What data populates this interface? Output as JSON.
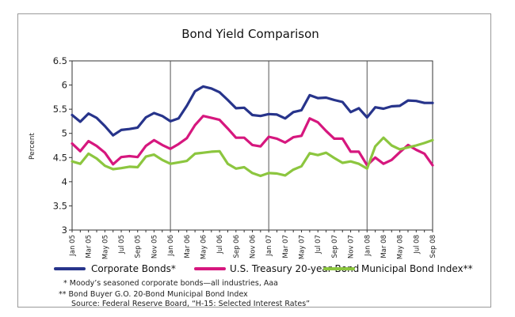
{
  "chart_data": {
    "type": "line",
    "title": "Bond Yield Comparison",
    "ylabel": "Percent",
    "xlabel": "",
    "ylim": [
      3,
      6.5
    ],
    "yticks": [
      "3",
      "3.5",
      "4",
      "4.5",
      "5",
      "5.5",
      "6",
      "6.5"
    ],
    "x_tick_labels": [
      "Jan 05",
      "Mar 05",
      "May 05",
      "Jul 05",
      "Sep 05",
      "Nov 05",
      "Jan 06",
      "Mar 06",
      "May 06",
      "Jul 06",
      "Sep 06",
      "Nov 06",
      "Jan 07",
      "Mar 07",
      "May 07",
      "Jul 07",
      "Sep 07",
      "Nov 07",
      "Jan 08",
      "Mar 08",
      "May 08",
      "Jul 08",
      "Sep 08"
    ],
    "x": [
      "Jan 05",
      "Feb 05",
      "Mar 05",
      "Apr 05",
      "May 05",
      "Jun 05",
      "Jul 05",
      "Aug 05",
      "Sep 05",
      "Oct 05",
      "Nov 05",
      "Dec 05",
      "Jan 06",
      "Feb 06",
      "Mar 06",
      "Apr 06",
      "May 06",
      "Jun 06",
      "Jul 06",
      "Aug 06",
      "Sep 06",
      "Oct 06",
      "Nov 06",
      "Dec 06",
      "Jan 07",
      "Feb 07",
      "Mar 07",
      "Apr 07",
      "May 07",
      "Jun 07",
      "Jul 07",
      "Aug 07",
      "Sep 07",
      "Oct 07",
      "Nov 07",
      "Dec 07",
      "Jan 08",
      "Feb 08",
      "Mar 08",
      "Apr 08",
      "May 08",
      "Jun 08",
      "Jul 08",
      "Aug 08",
      "Sep 08"
    ],
    "year_dividers": [
      "Jan 06",
      "Jan 07",
      "Jan 08"
    ],
    "grid": false,
    "legend_position": "bottom",
    "series": [
      {
        "name": "Corporate Bonds*",
        "color": "#27348b",
        "values": [
          5.38,
          5.24,
          5.41,
          5.32,
          5.15,
          4.96,
          5.07,
          5.09,
          5.12,
          5.33,
          5.42,
          5.36,
          5.25,
          5.31,
          5.57,
          5.87,
          5.97,
          5.93,
          5.85,
          5.69,
          5.52,
          5.53,
          5.38,
          5.36,
          5.4,
          5.39,
          5.31,
          5.44,
          5.48,
          5.79,
          5.73,
          5.74,
          5.69,
          5.65,
          5.44,
          5.52,
          5.33,
          5.54,
          5.51,
          5.56,
          5.57,
          5.68,
          5.67,
          5.63,
          5.63
        ]
      },
      {
        "name": "U.S. Treasury 20-year Bond",
        "color": "#d6177e",
        "values": [
          4.79,
          4.63,
          4.84,
          4.74,
          4.6,
          4.36,
          4.51,
          4.53,
          4.51,
          4.74,
          4.86,
          4.76,
          4.68,
          4.78,
          4.9,
          5.17,
          5.36,
          5.32,
          5.28,
          5.1,
          4.91,
          4.91,
          4.76,
          4.73,
          4.93,
          4.89,
          4.81,
          4.92,
          4.95,
          5.31,
          5.23,
          5.05,
          4.89,
          4.89,
          4.62,
          4.62,
          4.34,
          4.5,
          4.37,
          4.45,
          4.61,
          4.76,
          4.66,
          4.58,
          4.34
        ]
      },
      {
        "name": "Municipal Bond Index**",
        "color": "#8cc63f",
        "values": [
          4.42,
          4.37,
          4.58,
          4.48,
          4.33,
          4.26,
          4.28,
          4.31,
          4.3,
          4.52,
          4.56,
          4.45,
          4.37,
          4.4,
          4.43,
          4.58,
          4.6,
          4.62,
          4.63,
          4.37,
          4.27,
          4.3,
          4.18,
          4.12,
          4.18,
          4.17,
          4.13,
          4.25,
          4.32,
          4.59,
          4.55,
          4.6,
          4.49,
          4.39,
          4.42,
          4.37,
          4.27,
          4.73,
          4.91,
          4.75,
          4.67,
          4.71,
          4.75,
          4.8,
          4.86
        ]
      }
    ]
  },
  "notes": [
    "*  Moody’s seasoned corporate bonds—all industries, Aaa",
    "**  Bond Buyer G.O. 20-Bond Municipal Bond Index",
    "Source: Federal Reserve Board, “H-15: Selected Interest Rates”"
  ]
}
